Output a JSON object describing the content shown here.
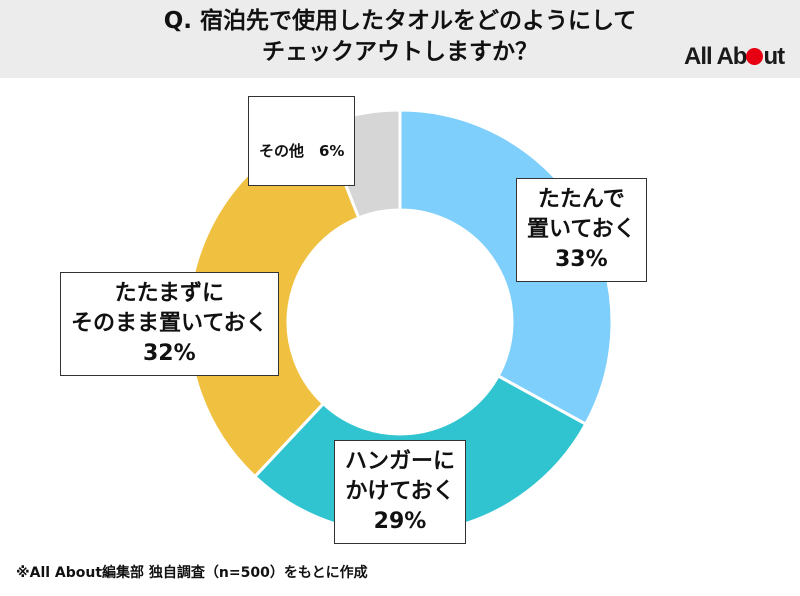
{
  "header": {
    "title_line1": "Q. 宿泊先で使用したタオルをどのようにして",
    "title_line2": "チェックアウトしますか？",
    "logo_pre": "All Ab",
    "logo_post": "ut"
  },
  "chart_data": {
    "type": "pie",
    "title": "Q. 宿泊先で使用したタオルをどのようにしてチェックアウトしますか？",
    "categories": [
      "たたんで置いておく",
      "ハンガーにかけておく",
      "たたまずにそのまま置いておく",
      "その他"
    ],
    "values": [
      33,
      29,
      32,
      6
    ],
    "colors": [
      "#7ecffb",
      "#2fc4d0",
      "#f0c040",
      "#d6d6d6"
    ],
    "labels": [
      {
        "lines": [
          "たたんで",
          "置いておく"
        ],
        "pct": "33%"
      },
      {
        "lines": [
          "ハンガーに",
          "かけておく"
        ],
        "pct": "29%"
      },
      {
        "lines": [
          "たたまずに",
          "そのまま置いておく"
        ],
        "pct": "32%"
      },
      {
        "text": "その他　6%"
      }
    ]
  },
  "footer": {
    "note": "※All About編集部 独自調査（n=500）をもとに作成"
  }
}
